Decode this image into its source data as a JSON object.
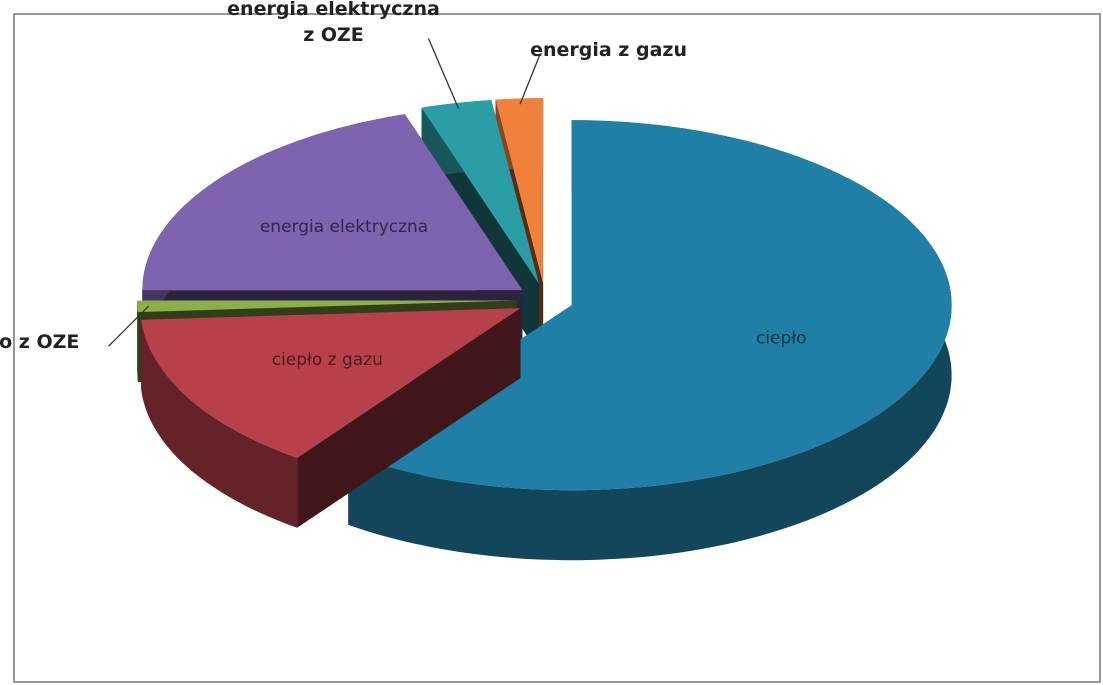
{
  "chart_data": {
    "type": "pie3d",
    "categories": [
      "ciepło",
      "ciepło z gazu",
      "ciepło z OZE",
      "energia elektryczna",
      "energia elektryczna z OZE",
      "energia z gazu"
    ],
    "values": [
      60,
      14,
      1,
      20,
      3,
      2
    ],
    "colors": [
      "#1f7fa6",
      "#b8404a",
      "#8bb04a",
      "#7d63b0",
      "#2a9da6",
      "#f0813a"
    ]
  }
}
